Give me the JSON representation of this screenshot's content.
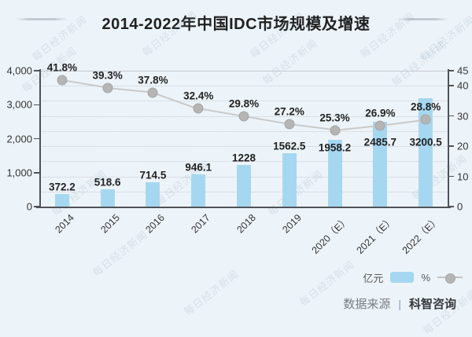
{
  "page": {
    "background": "#edf4f9"
  },
  "title": {
    "text": "2014-2022年中国IDC市场规模及增速"
  },
  "watermark": {
    "text": "每日经济新闻"
  },
  "legend": {
    "bar_label": "亿元",
    "line_label": "%"
  },
  "source": {
    "label": "数据来源",
    "separator": "|",
    "name": "科智咨询"
  },
  "chart_data": {
    "type": "bar+line",
    "title": "2014-2022年中国IDC市场规模及增速",
    "categories": [
      "2014",
      "2015",
      "2016",
      "2017",
      "2018",
      "2019",
      "2020（E）",
      "2021（E）",
      "2022（E）"
    ],
    "series": [
      {
        "name": "亿元",
        "type": "bar",
        "axis": "left",
        "color": "#a6d7f1",
        "values": [
          372.2,
          518.6,
          714.5,
          946.1,
          1228,
          1562.5,
          1958.2,
          2485.7,
          3200.5
        ],
        "labels": [
          "372.2",
          "518.6",
          "714.5",
          "946.1",
          "1228",
          "1562.5",
          "1958.2",
          "2485.7",
          "3200.5"
        ]
      },
      {
        "name": "%",
        "type": "line",
        "axis": "right",
        "color": "#c9c9c9",
        "marker_color": "#b5b5b5",
        "values": [
          41.8,
          39.3,
          37.8,
          32.4,
          29.8,
          27.2,
          25.3,
          26.9,
          28.8
        ],
        "labels": [
          "41.8%",
          "39.3%",
          "37.8%",
          "32.4%",
          "29.8%",
          "27.2%",
          "25.3%",
          "26.9%",
          "28.8%"
        ]
      }
    ],
    "left_axis": {
      "min": 0,
      "max": 4000,
      "ticks": [
        {
          "value": 4000,
          "label": "4,000"
        },
        {
          "value": 3000,
          "label": "3,000"
        },
        {
          "value": 2000,
          "label": "2,000"
        },
        {
          "value": 1000,
          "label": "1,000"
        },
        {
          "value": 0,
          "label": "0"
        }
      ]
    },
    "right_axis": {
      "min": 0,
      "max": 45,
      "ticks": [
        {
          "value": 45,
          "label": "45"
        },
        {
          "value": 40,
          "label": "40"
        },
        {
          "value": 30,
          "label": "30"
        },
        {
          "value": 20,
          "label": "20"
        },
        {
          "value": 10,
          "label": "10"
        },
        {
          "value": 0,
          "label": "0"
        }
      ]
    },
    "grid": {
      "style": "dotted",
      "interval_right_units": 5,
      "top_line": "solid"
    },
    "legend_position": "bottom-right"
  }
}
